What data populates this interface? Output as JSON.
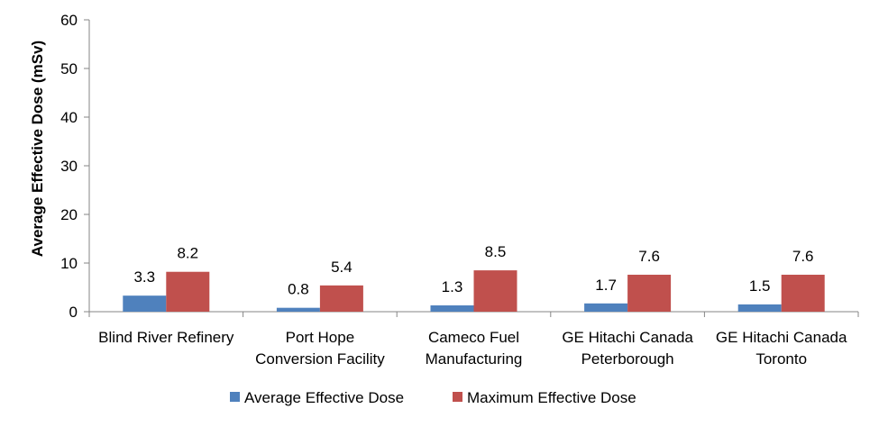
{
  "chart_data": {
    "type": "bar",
    "title": "",
    "xlabel": "",
    "ylabel": "Average Effective Dose (mSv)",
    "ylim": [
      0,
      60
    ],
    "yticks": [
      0,
      10,
      20,
      30,
      40,
      50,
      60
    ],
    "grid": false,
    "legend_position": "bottom",
    "categories": [
      [
        "Blind River Refinery"
      ],
      [
        "Port Hope",
        "Conversion Facility"
      ],
      [
        "Cameco Fuel",
        "Manufacturing"
      ],
      [
        "GE Hitachi Canada",
        "Peterborough"
      ],
      [
        "GE Hitachi Canada",
        "Toronto"
      ]
    ],
    "series": [
      {
        "name": "Average Effective Dose",
        "color": "#4F81BD",
        "values": [
          3.3,
          0.8,
          1.3,
          1.7,
          1.5
        ],
        "labels": [
          "3.3",
          "0.8",
          "1.3",
          "1.7",
          "1.5"
        ]
      },
      {
        "name": "Maximum Effective Dose",
        "color": "#C0504D",
        "values": [
          8.2,
          5.4,
          8.5,
          7.6,
          7.6
        ],
        "labels": [
          "8.2",
          "5.4",
          "8.5",
          "7.6",
          "7.6"
        ]
      }
    ]
  }
}
